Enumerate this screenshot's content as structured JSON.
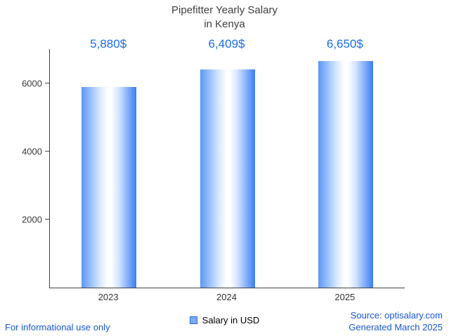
{
  "colors": {
    "accent": "#1b6ceb",
    "axis": "#424242",
    "footer_text": "#1756d8",
    "bar_left": "#5b97f5",
    "bar_right": "#3b7df2",
    "legend_swatch_fill": "#7baaf7",
    "legend_swatch_border": "#3367d6"
  },
  "chart_data": {
    "type": "bar",
    "title": "Pipefitter Yearly Salary in Kenya",
    "title_lines": [
      "Pipefitter Yearly Salary",
      "in Kenya"
    ],
    "categories": [
      "2023",
      "2024",
      "2025"
    ],
    "values": [
      5880,
      6409,
      6650
    ],
    "value_labels": [
      "5,880$",
      "6,409$",
      "6,650$"
    ],
    "xlabel": "",
    "ylabel": "",
    "ylim": [
      0,
      7000
    ],
    "yticks": [
      2000,
      4000,
      6000
    ],
    "grid": "off",
    "legend": [
      {
        "label": "Salary in USD"
      }
    ],
    "legend_position": "bottom-center"
  },
  "footer": {
    "left_note": "For informational use only",
    "source": "Source: optisalary.com",
    "generated": "Generated March 2025"
  }
}
